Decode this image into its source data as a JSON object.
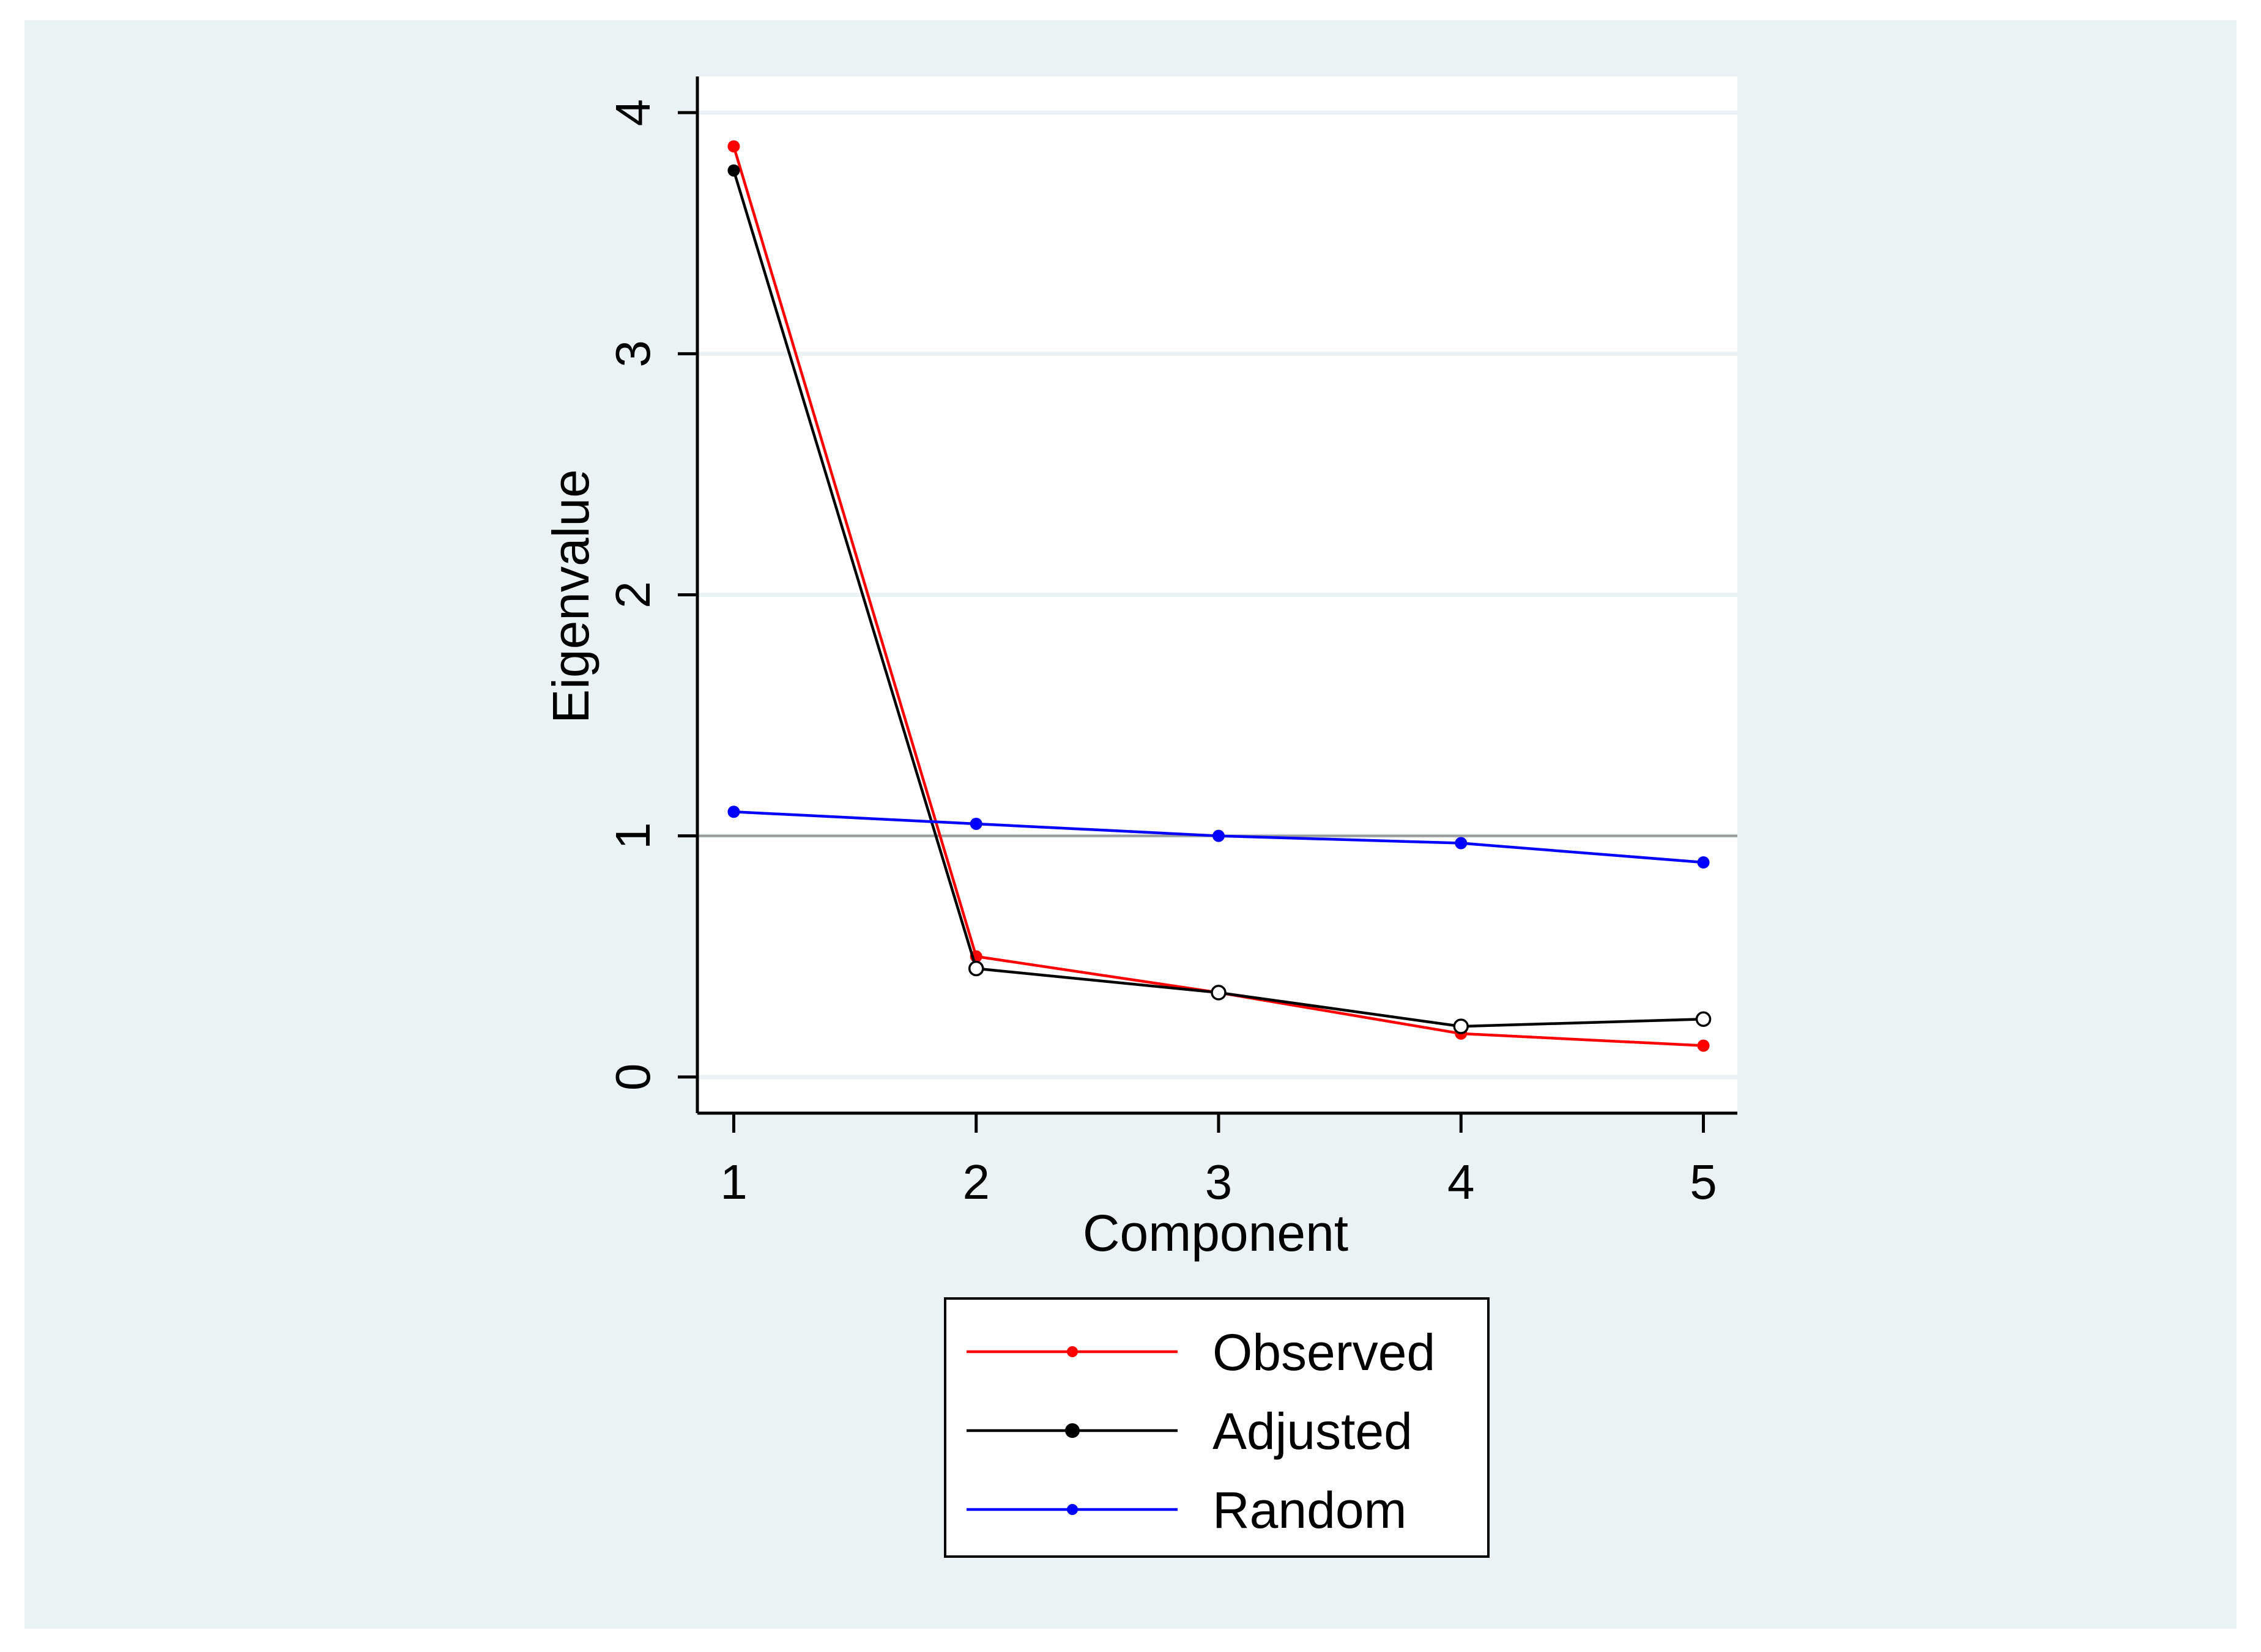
{
  "chart_data": {
    "type": "line",
    "title": "",
    "xlabel": "Component",
    "ylabel": "Eigenvalue",
    "x": [
      1,
      2,
      3,
      4,
      5
    ],
    "xlim": [
      0.85,
      5.14
    ],
    "ylim": [
      -0.15,
      4.15
    ],
    "xticks": [
      "1",
      "2",
      "3",
      "4",
      "5"
    ],
    "yticks": [
      "0",
      "1",
      "2",
      "3",
      "4"
    ],
    "reference_line": 1,
    "grid": true,
    "legend_position": "bottom",
    "series": [
      {
        "name": "Observed",
        "color": "#ff0000",
        "values": [
          3.86,
          0.5,
          0.35,
          0.18,
          0.13
        ]
      },
      {
        "name": "Adjusted",
        "color": "#000000",
        "values": [
          3.76,
          0.45,
          0.35,
          0.21,
          0.24
        ],
        "hollow_markers_from_index": 1
      },
      {
        "name": "Random",
        "color": "#0000ff",
        "values": [
          1.1,
          1.05,
          1.0,
          0.97,
          0.89
        ]
      }
    ],
    "colors": {
      "outer_background": "#eaf2f3",
      "plot_background": "#ffffff",
      "gridline": "#eaf2f3",
      "reference_line": "#9a9a9a",
      "axis": "#000000"
    }
  }
}
